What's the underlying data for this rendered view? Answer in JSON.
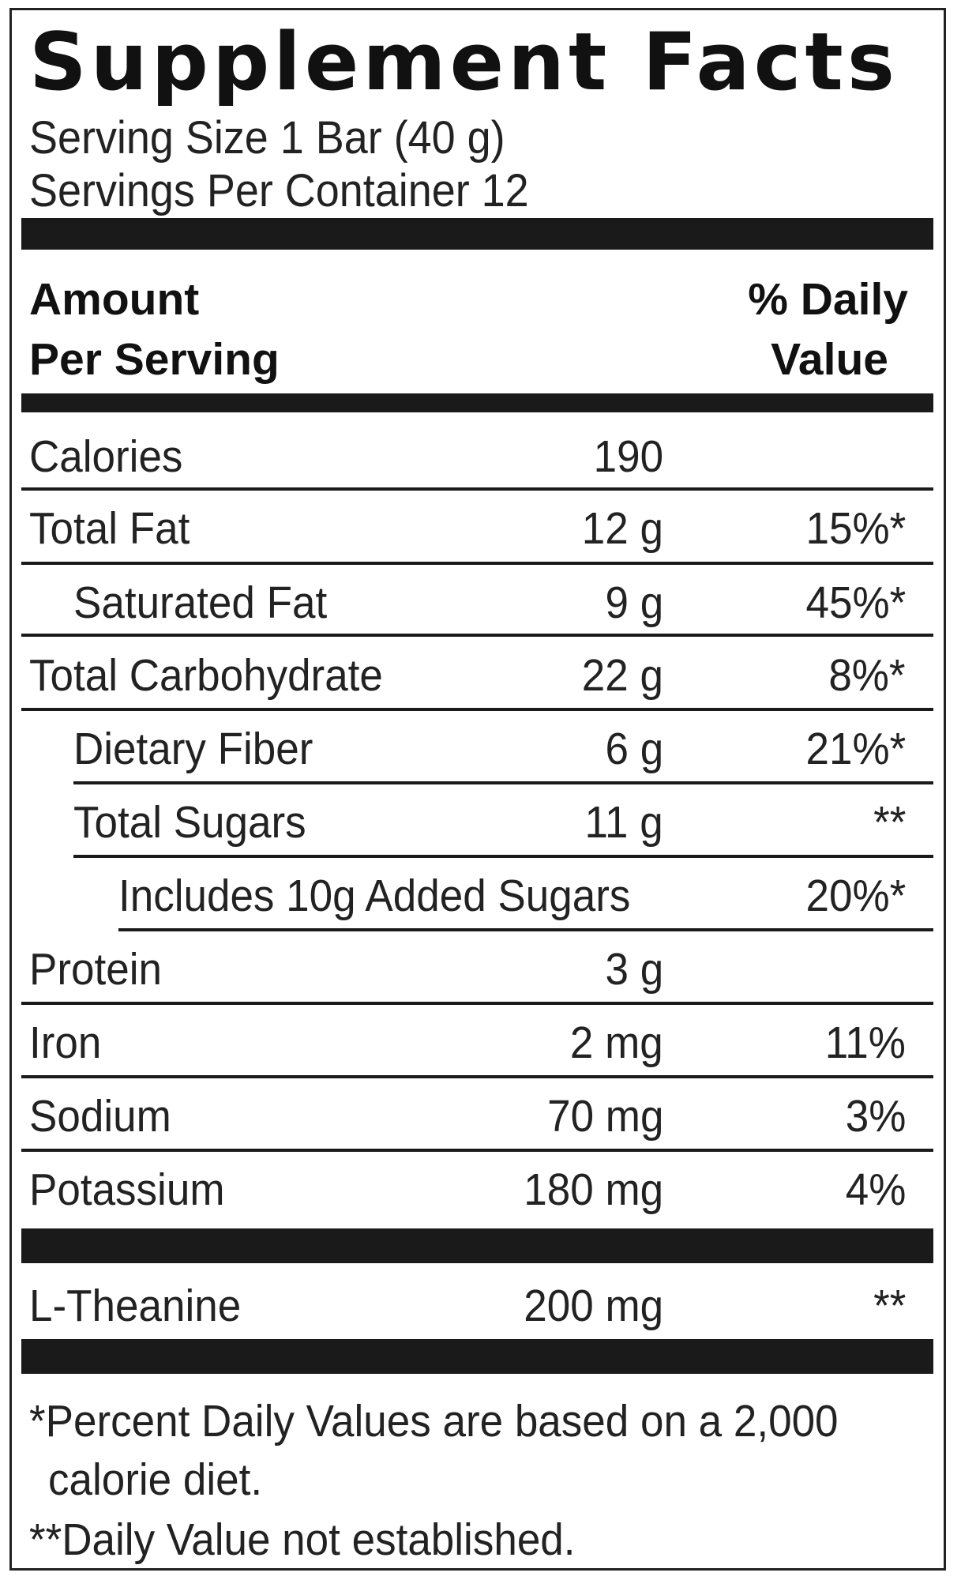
{
  "title": "Supplement Facts",
  "serving_size": "Serving Size 1 Bar (40 g)",
  "servings_per_container": "Servings Per Container 12",
  "header": {
    "amount_line1": "Amount",
    "amount_line2": "Per Serving",
    "dv_line1": "% Daily",
    "dv_line2": "Value"
  },
  "rows": [
    {
      "name": "Calories",
      "amount": "190",
      "dv": ""
    },
    {
      "name": "Total Fat",
      "amount": "12 g",
      "dv": "15%*"
    },
    {
      "name": "Saturated Fat",
      "amount": "9 g",
      "dv": "45%*"
    },
    {
      "name": "Total Carbohydrate",
      "amount": "22 g",
      "dv": "8%*"
    },
    {
      "name": "Dietary Fiber",
      "amount": "6 g",
      "dv": "21%*"
    },
    {
      "name": "Total Sugars",
      "amount": "11 g",
      "dv": "**"
    },
    {
      "name": "Includes 10g Added Sugars",
      "amount": "",
      "dv": "20%*"
    },
    {
      "name": "Protein",
      "amount": "3 g",
      "dv": ""
    },
    {
      "name": "Iron",
      "amount": "2 mg",
      "dv": "11%"
    },
    {
      "name": "Sodium",
      "amount": "70 mg",
      "dv": "3%"
    },
    {
      "name": "Potassium",
      "amount": "180 mg",
      "dv": "4%"
    },
    {
      "name": "L-Theanine",
      "amount": "200 mg",
      "dv": "**"
    }
  ],
  "footnotes": {
    "line1": "*Percent Daily Values are based on a 2,000",
    "line2": "calorie diet.",
    "line3": "**Daily Value not established."
  }
}
